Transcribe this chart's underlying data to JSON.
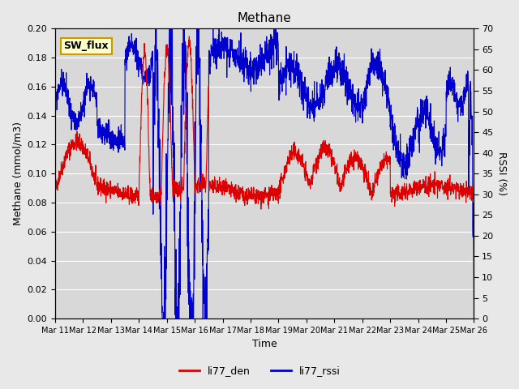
{
  "title": "Methane",
  "xlabel": "Time",
  "ylabel_left": "Methane (mmol/m3)",
  "ylabel_right": "RSSI (%)",
  "ylim_left": [
    0.0,
    0.2
  ],
  "ylim_right": [
    0,
    70
  ],
  "yticks_left": [
    0.0,
    0.02,
    0.04,
    0.06,
    0.08,
    0.1,
    0.12,
    0.14,
    0.16,
    0.18,
    0.2
  ],
  "yticks_right": [
    0,
    5,
    10,
    15,
    20,
    25,
    30,
    35,
    40,
    45,
    50,
    55,
    60,
    65,
    70
  ],
  "xtick_labels": [
    "Mar 11",
    "Mar 12",
    "Mar 13",
    "Mar 14",
    "Mar 15",
    "Mar 16",
    "Mar 17",
    "Mar 18",
    "Mar 19",
    "Mar 20",
    "Mar 21",
    "Mar 22",
    "Mar 23",
    "Mar 24",
    "Mar 25",
    "Mar 26"
  ],
  "line_red_label": "li77_den",
  "line_blue_label": "li77_rssi",
  "line_red_color": "#dd0000",
  "line_blue_color": "#0000cc",
  "bg_color": "#e8e8e8",
  "plot_bg_color": "#d8d8d8",
  "annotation_text": "SW_flux",
  "annotation_bg": "#ffffcc",
  "annotation_border": "#cc9900"
}
